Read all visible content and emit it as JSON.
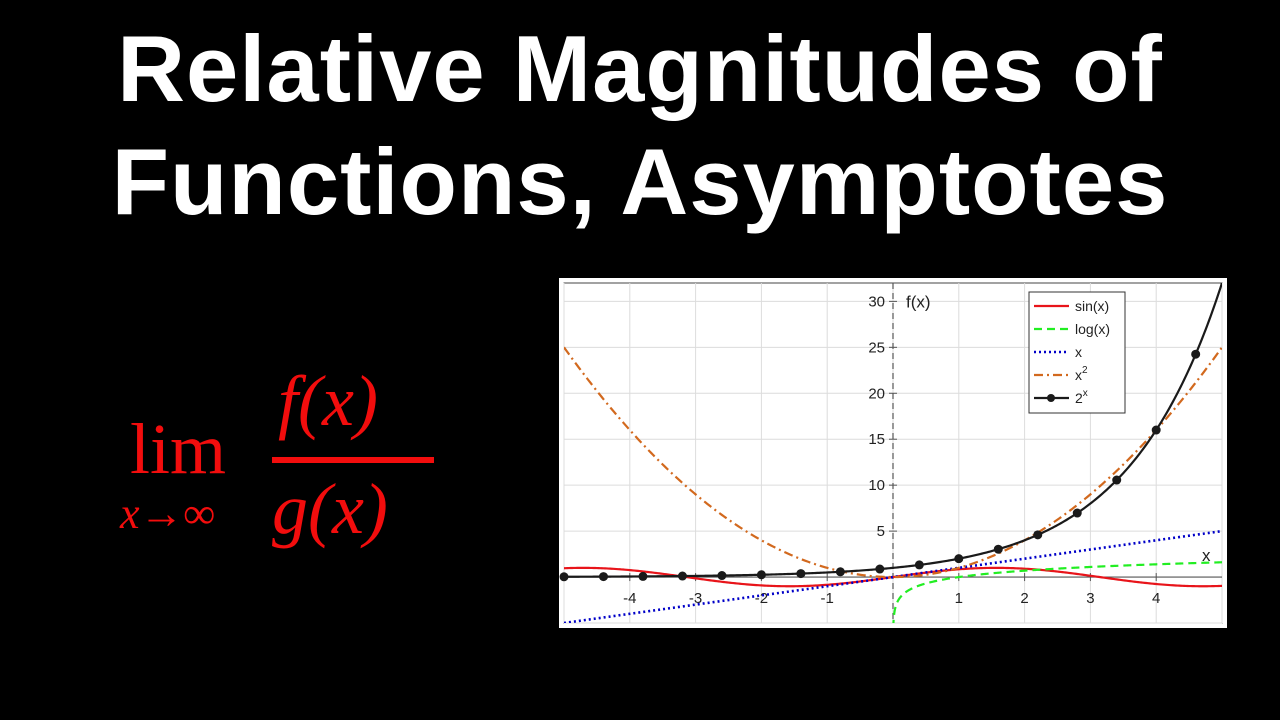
{
  "title": {
    "line1": "Relative Magnitudes of",
    "line2": "Functions, Asymptotes"
  },
  "formula": {
    "lim": "lim",
    "subscript": "x→∞",
    "numerator": "f(x)",
    "denominator": "g(x)"
  },
  "colors": {
    "background": "#000000",
    "title": "#ffffff",
    "formula": "#f20d0d",
    "sin": "#e8141a",
    "log": "#22ee22",
    "linear": "#0000c8",
    "quadratic": "#d2691e",
    "exponential": "#1a1a1a"
  },
  "chart_data": {
    "type": "line",
    "xlabel": "x",
    "ylabel": "f(x)",
    "xlim": [
      -5,
      5
    ],
    "ylim": [
      -5,
      32
    ],
    "xticks": [
      -4,
      -3,
      -2,
      -1,
      1,
      2,
      3,
      4
    ],
    "yticks": [
      5,
      10,
      15,
      20,
      25,
      30
    ],
    "grid": true,
    "legend_position": "top-right",
    "series": [
      {
        "name": "sin(x)",
        "function": "sin",
        "style": "solid",
        "color": "#e8141a",
        "legend": [
          "sin(x)",
          ""
        ]
      },
      {
        "name": "log(x)",
        "function": "log",
        "style": "dashed",
        "color": "#22ee22",
        "legend": [
          "log(x)",
          ""
        ]
      },
      {
        "name": "x",
        "function": "linear",
        "style": "dotted",
        "color": "#0000c8",
        "legend": [
          "x",
          ""
        ]
      },
      {
        "name": "x^2",
        "function": "square",
        "style": "dashdot",
        "color": "#d2691e",
        "legend": [
          "x",
          "2"
        ]
      },
      {
        "name": "2^x",
        "function": "exp2",
        "style": "solid-markers",
        "color": "#1a1a1a",
        "legend": [
          "2",
          "x"
        ]
      }
    ]
  }
}
